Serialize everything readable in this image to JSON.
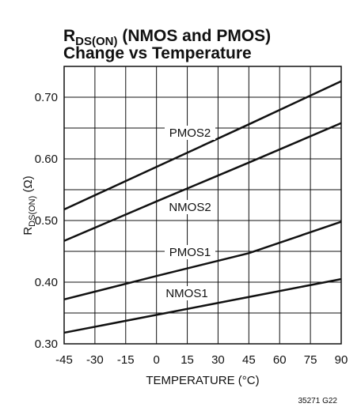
{
  "chart_data": {
    "type": "line",
    "title": {
      "main": "R",
      "sub": "DS(ON)",
      "rest": " (NMOS and PMOS)",
      "line2": "Change vs Temperature"
    },
    "ylabel": {
      "main": "R",
      "sub": "DS(ON)",
      "rest": " (Ω)"
    },
    "xlabel": "TEMPERATURE (°C)",
    "footnote": "35271 G22",
    "x": [
      -45,
      0,
      45,
      90
    ],
    "series": [
      {
        "name": "PMOS2",
        "color": "#111111",
        "values": [
          0.518,
          0.587,
          0.656,
          0.726
        ]
      },
      {
        "name": "NMOS2",
        "color": "#111111",
        "values": [
          0.467,
          0.531,
          0.594,
          0.658
        ]
      },
      {
        "name": "PMOS1",
        "color": "#111111",
        "values": [
          0.372,
          0.41,
          0.447,
          0.498
        ]
      },
      {
        "name": "NMOS1",
        "color": "#111111",
        "values": [
          0.318,
          0.347,
          0.376,
          0.405
        ]
      }
    ],
    "xlim": [
      -45,
      90
    ],
    "xticks": [
      -45,
      -30,
      -15,
      0,
      15,
      30,
      45,
      60,
      75,
      90
    ],
    "ylim": [
      0.3,
      0.75
    ],
    "yticks": [
      {
        "value": 0.3,
        "label": "0.30"
      },
      {
        "value": 0.4,
        "label": "0.40"
      },
      {
        "value": 0.5,
        "label": "0.50"
      },
      {
        "value": 0.6,
        "label": "0.60"
      },
      {
        "value": 0.7,
        "label": "0.70"
      }
    ],
    "ygrid_minor": [
      0.35,
      0.45,
      0.55,
      0.65
    ],
    "grid": true
  }
}
